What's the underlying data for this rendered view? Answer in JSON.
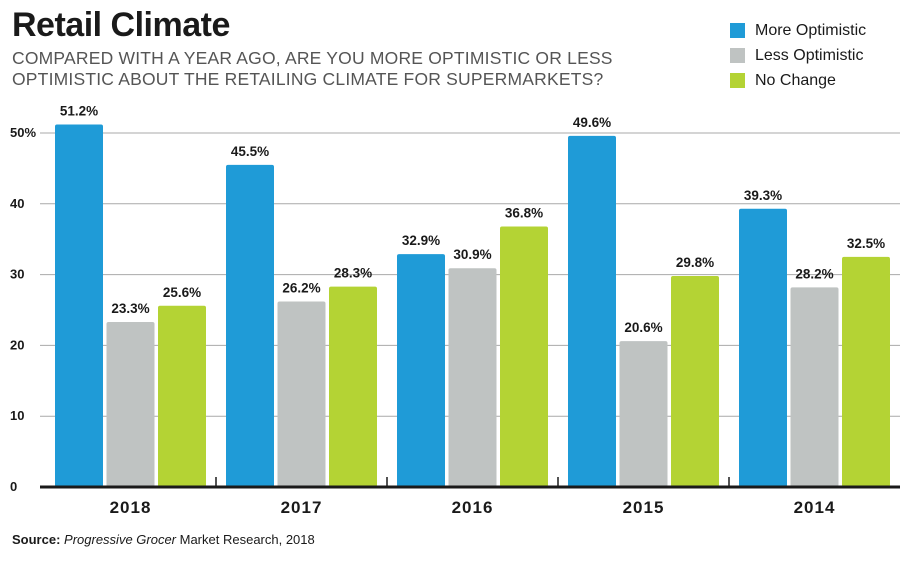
{
  "source": {
    "label": "Source:",
    "publication": "Progressive Grocer",
    "rest": " Market Research, 2018"
  },
  "chart_data": {
    "type": "bar",
    "title": "Retail Climate",
    "subtitle": "COMPARED WITH A YEAR AGO, ARE YOU MORE OPTIMISTIC OR LESS OPTIMISTIC ABOUT THE RETAILING CLIMATE FOR SUPERMARKETS?",
    "xlabel": "",
    "ylabel": "",
    "ylim": [
      0,
      50
    ],
    "yticks": [
      0,
      10,
      20,
      30,
      40,
      50
    ],
    "ytick_labels": [
      "0",
      "10",
      "20",
      "30",
      "40",
      "50%"
    ],
    "grid": true,
    "legend_position": "top-right",
    "categories": [
      "2018",
      "2017",
      "2016",
      "2015",
      "2014"
    ],
    "series": [
      {
        "name": "More Optimistic",
        "color": "#1f9bd7",
        "values": [
          51.2,
          45.5,
          32.9,
          49.6,
          39.3
        ],
        "labels": [
          "51.2%",
          "45.5%",
          "32.9%",
          "49.6%",
          "39.3%"
        ]
      },
      {
        "name": "Less Optimistic",
        "color": "#bfc3c2",
        "values": [
          23.3,
          26.2,
          30.9,
          20.6,
          28.2
        ],
        "labels": [
          "23.3%",
          "26.2%",
          "30.9%",
          "20.6%",
          "28.2%"
        ]
      },
      {
        "name": "No Change",
        "color": "#b4d334",
        "values": [
          25.6,
          28.3,
          36.8,
          29.8,
          32.5
        ],
        "labels": [
          "25.6%",
          "28.3%",
          "36.8%",
          "29.8%",
          "32.5%"
        ]
      }
    ]
  }
}
